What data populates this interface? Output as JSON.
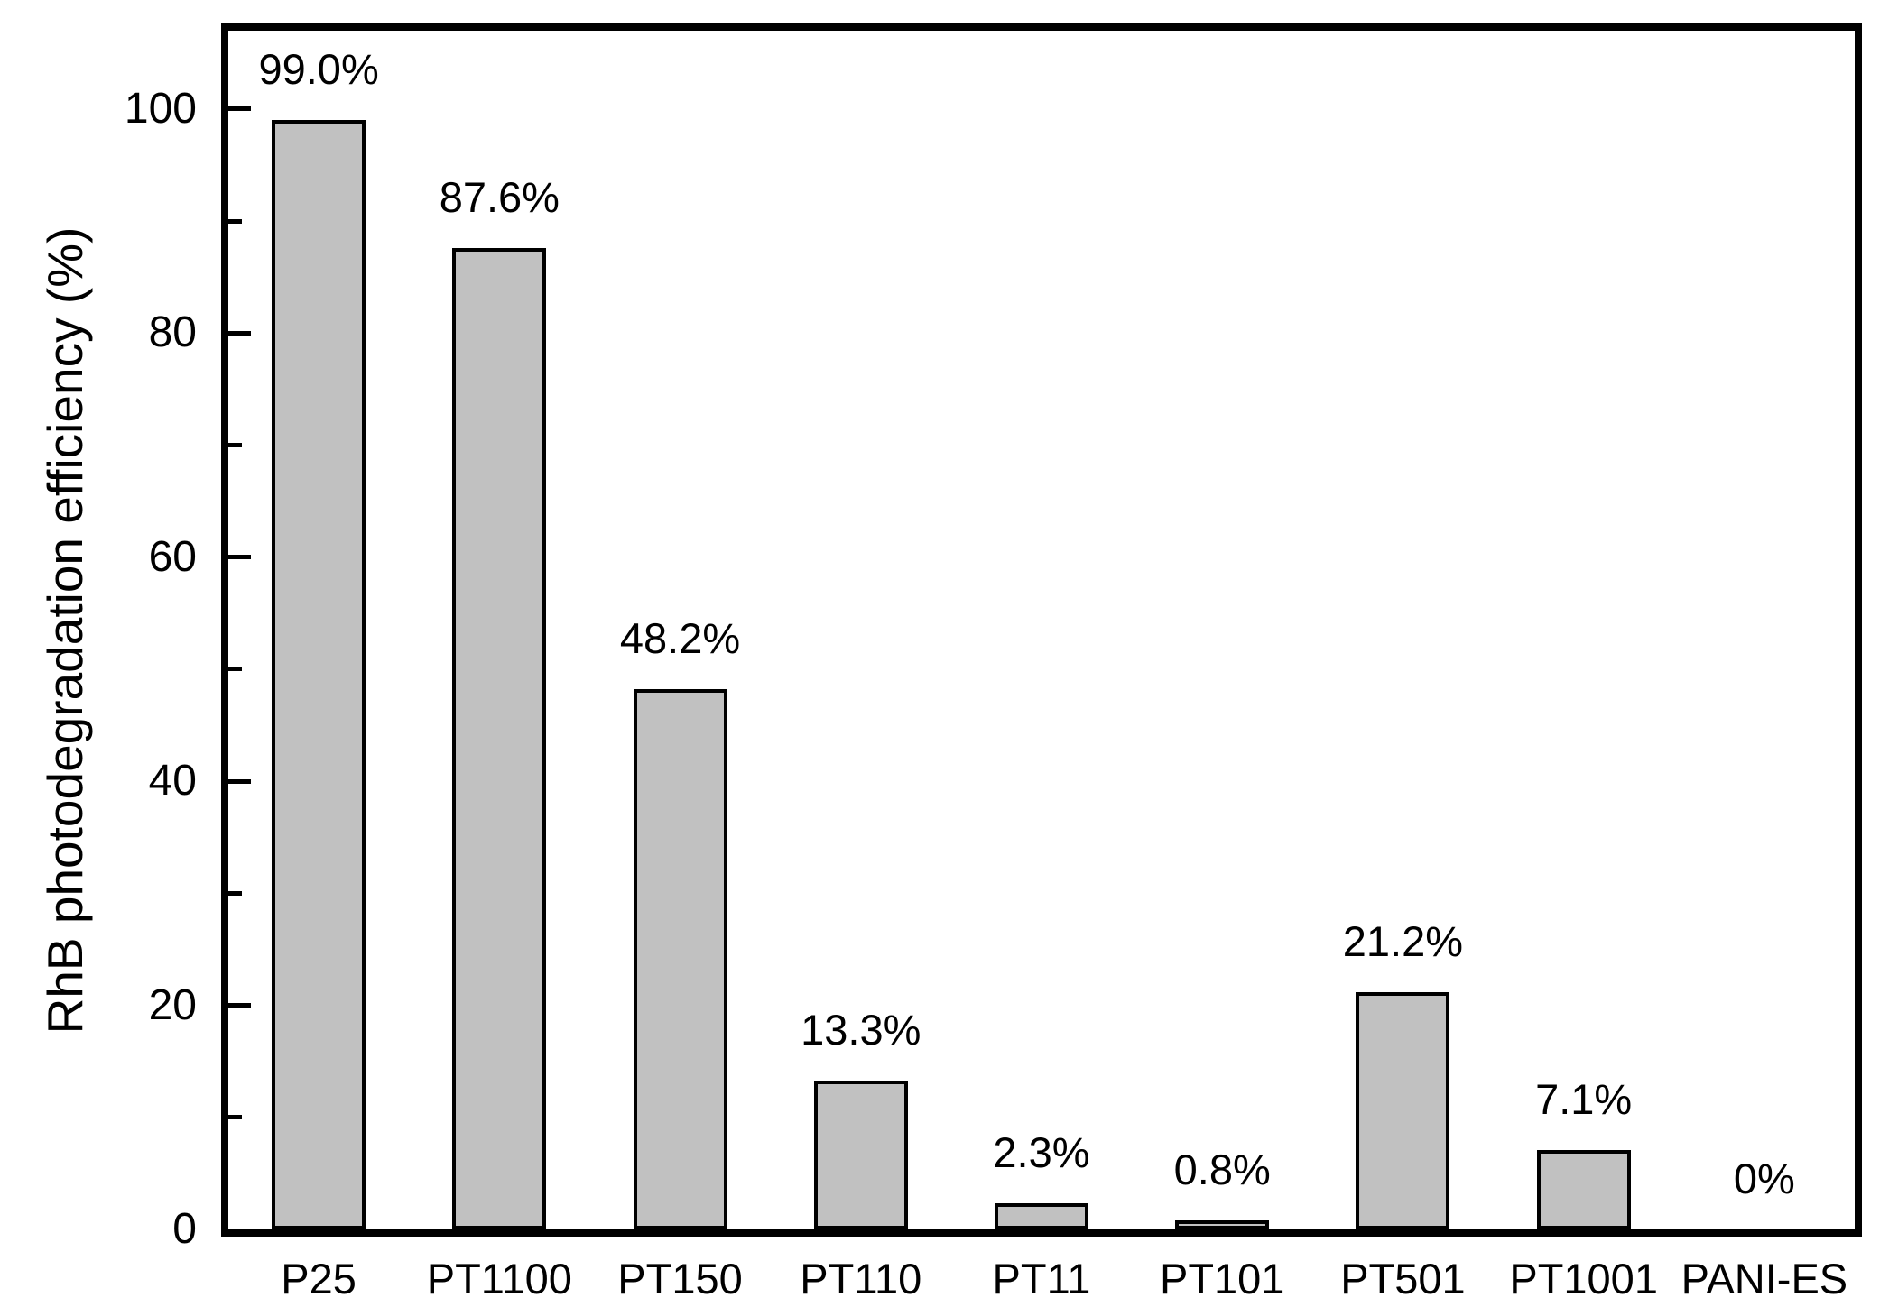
{
  "chart_data": {
    "type": "bar",
    "title": "",
    "categories": [
      "P25",
      "PT1100",
      "PT150",
      "PT110",
      "PT11",
      "PT101",
      "PT501",
      "PT1001",
      "PANI-ES"
    ],
    "values": [
      99.0,
      87.6,
      48.2,
      13.3,
      2.3,
      0.8,
      21.2,
      7.1,
      0
    ],
    "bar_labels": [
      "99.0%",
      "87.6%",
      "48.2%",
      "13.3%",
      "2.3%",
      "0.8%",
      "21.2%",
      "7.1%",
      "0%"
    ],
    "xlabel": "",
    "ylabel": "RhB photodegradation efficiency (%)",
    "ylim": [
      0,
      107
    ],
    "yticks": [
      0,
      20,
      40,
      60,
      80,
      100
    ],
    "yticks_minor": [
      10,
      30,
      50,
      70,
      90
    ],
    "grid": false,
    "legend": "none",
    "colors": {
      "bar_fill": "#c1c1c1",
      "bar_border": "#000000",
      "axis": "#000000",
      "text": "#000000",
      "background": "#ffffff"
    }
  }
}
